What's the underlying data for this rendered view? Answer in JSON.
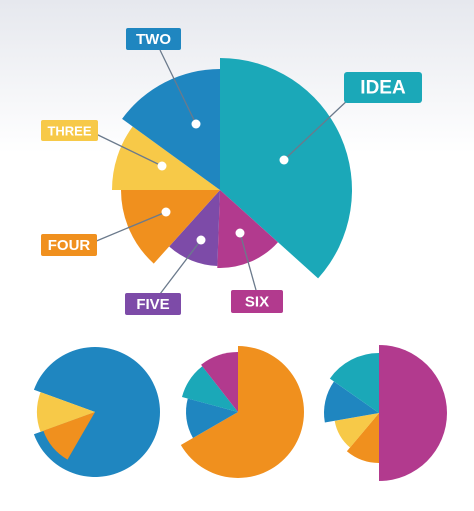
{
  "callouts": [
    {
      "label": "IDEA"
    },
    {
      "label": "TWO"
    },
    {
      "label": "THREE"
    },
    {
      "label": "FOUR"
    },
    {
      "label": "FIVE"
    },
    {
      "label": "SIX"
    }
  ]
}
